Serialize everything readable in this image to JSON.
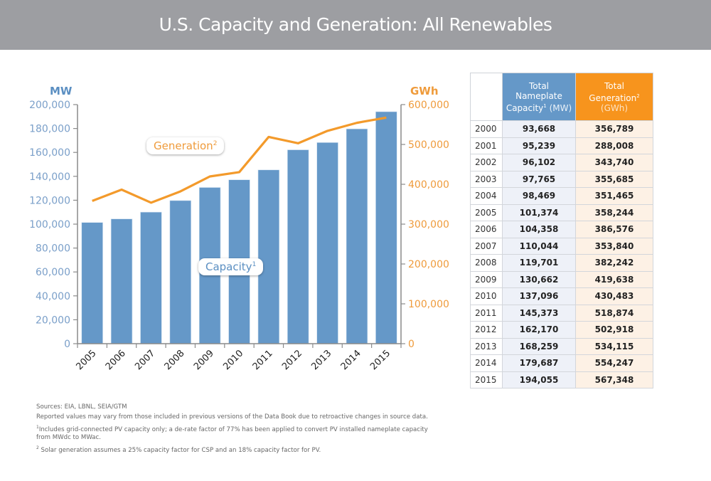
{
  "header": {
    "title": "U.S. Capacity and Generation: All Renewables"
  },
  "colors": {
    "capacity": "#6598c8",
    "generation": "#f7941d",
    "header_bg": "#9d9ea2"
  },
  "callouts": {
    "generation": {
      "label": "Generation",
      "sup": "2"
    },
    "capacity": {
      "label": "Capacity",
      "sup": "1"
    }
  },
  "chart_data": {
    "type": "bar+line",
    "title": "U.S. Capacity and Generation: All Renewables",
    "categories": [
      "2005",
      "2006",
      "2007",
      "2008",
      "2009",
      "2010",
      "2011",
      "2012",
      "2013",
      "2014",
      "2015"
    ],
    "series": [
      {
        "name": "Capacity",
        "type": "bar",
        "axis": "left",
        "unit": "MW",
        "values": [
          101374,
          104358,
          110044,
          119701,
          130662,
          137096,
          145373,
          162170,
          168259,
          179687,
          194055
        ]
      },
      {
        "name": "Generation",
        "type": "line",
        "axis": "right",
        "unit": "GWh",
        "values": [
          358244,
          386576,
          353840,
          382242,
          419638,
          430483,
          518874,
          502918,
          534115,
          554247,
          567348
        ]
      }
    ],
    "left_axis": {
      "label": "MW",
      "range": [
        0,
        200000
      ],
      "ticks": [
        "0",
        "20,000",
        "40,000",
        "60,000",
        "80,000",
        "100,000",
        "120,000",
        "140,000",
        "160,000",
        "180,000",
        "200,000"
      ]
    },
    "right_axis": {
      "label": "GWh",
      "range": [
        0,
        600000
      ],
      "ticks": [
        "0",
        "100,000",
        "200,000",
        "300,000",
        "400,000",
        "500,000",
        "600,000"
      ]
    },
    "grid": false
  },
  "table": {
    "headers": {
      "capacity": {
        "line1": "Total",
        "line2": "Nameplate",
        "line3a": "Capacity",
        "sup": "1",
        "line3b": " (MW)"
      },
      "generation": {
        "line1": "Total",
        "line2a": "Generation",
        "sup": "2",
        "line3": "(GWh)"
      }
    },
    "rows": [
      {
        "year": "2000",
        "capacity": "93,668",
        "generation": "356,789"
      },
      {
        "year": "2001",
        "capacity": "95,239",
        "generation": "288,008"
      },
      {
        "year": "2002",
        "capacity": "96,102",
        "generation": "343,740"
      },
      {
        "year": "2003",
        "capacity": "97,765",
        "generation": "355,685"
      },
      {
        "year": "2004",
        "capacity": "98,469",
        "generation": "351,465"
      },
      {
        "year": "2005",
        "capacity": "101,374",
        "generation": "358,244"
      },
      {
        "year": "2006",
        "capacity": "104,358",
        "generation": "386,576"
      },
      {
        "year": "2007",
        "capacity": "110,044",
        "generation": "353,840"
      },
      {
        "year": "2008",
        "capacity": "119,701",
        "generation": "382,242"
      },
      {
        "year": "2009",
        "capacity": "130,662",
        "generation": "419,638"
      },
      {
        "year": "2010",
        "capacity": "137,096",
        "generation": "430,483"
      },
      {
        "year": "2011",
        "capacity": "145,373",
        "generation": "518,874"
      },
      {
        "year": "2012",
        "capacity": "162,170",
        "generation": "502,918"
      },
      {
        "year": "2013",
        "capacity": "168,259",
        "generation": "534,115"
      },
      {
        "year": "2014",
        "capacity": "179,687",
        "generation": "554,247"
      },
      {
        "year": "2015",
        "capacity": "194,055",
        "generation": "567,348"
      }
    ]
  },
  "notes": {
    "sources": "Sources: EIA, LBNL, SEIA/GTM",
    "reported": "Reported values may vary from those included in previous versions of the Data Book due to retroactive changes in source data.",
    "note1_sup": "1",
    "note1": "Includes grid-connected PV capacity only; a de-rate factor of 77% has been applied to convert PV installed nameplate capacity from MWdc to MWac.",
    "note2_sup": "2",
    "note2": " Solar generation assumes a 25% capacity factor for CSP and an 18% capacity factor for PV."
  }
}
